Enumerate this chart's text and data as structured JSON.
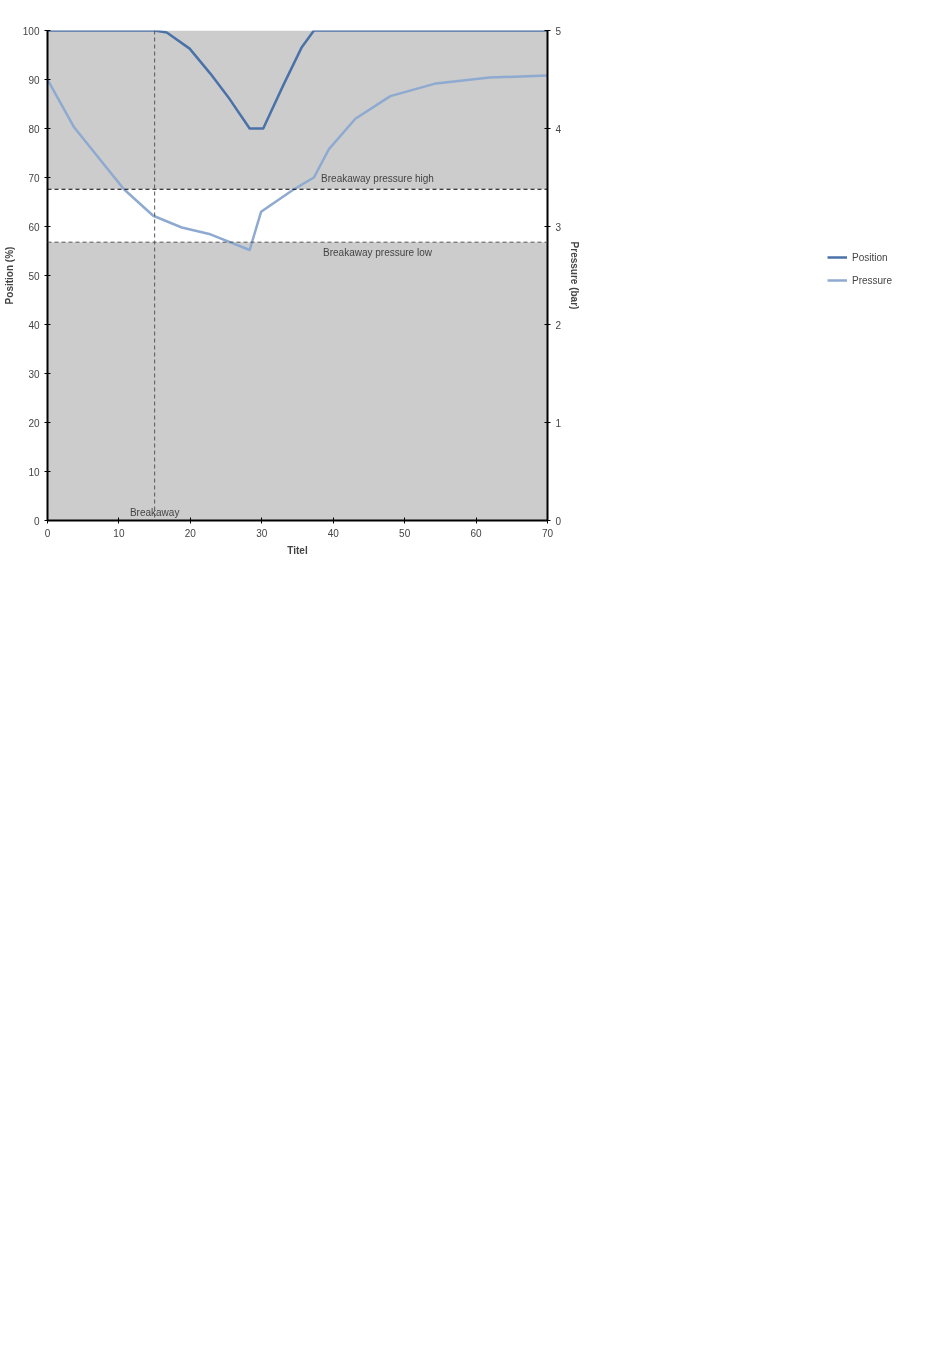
{
  "chart_data": {
    "type": "line",
    "xlabel": "Titel",
    "ylabel": "Position (%)",
    "y2label": "Pressure (bar)",
    "xlim": [
      0,
      70
    ],
    "xticks": [
      0,
      10,
      20,
      30,
      40,
      50,
      60,
      70
    ],
    "ylim": [
      0,
      100
    ],
    "yticks": [
      0,
      10,
      20,
      30,
      40,
      50,
      60,
      70,
      80,
      90,
      100
    ],
    "y2lim": [
      0,
      5
    ],
    "y2ticks": [
      0,
      1,
      2,
      3,
      4,
      5
    ],
    "grid": false,
    "legend": "right",
    "line_style": "solid",
    "series": [
      {
        "name": "Position",
        "color": "#4a72a8",
        "x": [
          0,
          15,
          16.7,
          19.9,
          22.8,
          25.5,
          28.3,
          30.2,
          33,
          35.6,
          37.3,
          70
        ],
        "values": [
          100,
          100,
          99.6,
          96.3,
          91.2,
          86,
          80,
          80,
          88.8,
          96.6,
          100,
          100
        ]
      },
      {
        "name": "Pressure",
        "color": "#8eaad0",
        "axis": "y2",
        "x": [
          0,
          3.75,
          10.7,
          14.8,
          18.8,
          22.8,
          28.3,
          29.9,
          34.5,
          37.3,
          39.4,
          43.1,
          48,
          54.4,
          61.9,
          70
        ],
        "values": [
          4.5,
          4.01,
          3.38,
          3.11,
          2.99,
          2.92,
          2.76,
          3.15,
          3.38,
          3.5,
          3.79,
          4.1,
          4.33,
          4.46,
          4.52,
          4.54
        ]
      }
    ],
    "bands": [
      {
        "axis": "y",
        "from": 67.6,
        "to": 100,
        "color": "#cccccc"
      },
      {
        "axis": "y",
        "from": 0,
        "to": 56.8,
        "color": "#cccccc"
      }
    ],
    "ref_lines": [
      {
        "axis": "y",
        "value": 67.6,
        "label": "Breakaway pressure high",
        "color": "#000000",
        "line_style": "dashed"
      },
      {
        "axis": "y",
        "value": 56.8,
        "label": "Breakaway pressure low",
        "color": "#555555",
        "line_style": "dashed"
      },
      {
        "axis": "x",
        "value": 15,
        "label": "Breakaway",
        "color": "#555555",
        "line_style": "dashed"
      }
    ]
  }
}
